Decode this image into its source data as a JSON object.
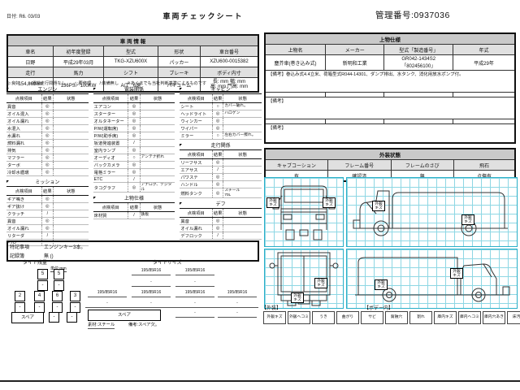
{
  "header": {
    "date": "日付: R6. 03/03",
    "title": "車両チェックシート",
    "control_number": "管理番号:0937036"
  },
  "vehicle_info": {
    "section_title": "車 両 情 報",
    "row1_headers": [
      "車名",
      "初年度登録",
      "型式",
      "形状",
      "車台番号"
    ],
    "row1_values": [
      "日野",
      "平成29年03月",
      "TKG-XZU600X",
      "パッカー",
      "XZU600-0015382"
    ],
    "row2_headers": [
      "走行",
      "馬力",
      "シフト",
      "ブレーキ",
      "ボディ内寸"
    ],
    "row2_values": [
      "154,869km",
      "136PS／100KW",
      "A/T　6速",
      "バキューム"
    ],
    "body_dims_line1": "長:        mm  幅:        mm",
    "body_dims_line2": "高:        mm  門高:      mm"
  },
  "legend": "◎:良好　　○:通常走行問題なし　　△:要修理　　/:装備無し　　※あくまでも当社判断基準によるものです",
  "inspection": {
    "col_headers": {
      "item": "点検項目",
      "result": "結果",
      "state": "状態"
    },
    "engine": {
      "title": "エンジン",
      "rows": [
        {
          "i": "異音",
          "r": "◎",
          "s": ""
        },
        {
          "i": "オイル混入",
          "r": "◎",
          "s": ""
        },
        {
          "i": "オイル漏れ",
          "r": "◎",
          "s": ""
        },
        {
          "i": "水混入",
          "r": "◎",
          "s": ""
        },
        {
          "i": "水漏れ",
          "r": "◎",
          "s": ""
        },
        {
          "i": "燃料漏れ",
          "r": "◎",
          "s": ""
        },
        {
          "i": "排気",
          "r": "◎",
          "s": ""
        },
        {
          "i": "マフラー",
          "r": "◎",
          "s": ""
        },
        {
          "i": "ターボ",
          "r": "◎",
          "s": ""
        },
        {
          "i": "冷却水循環",
          "r": "◎",
          "s": ""
        }
      ]
    },
    "mission": {
      "title": "ミッション",
      "rows": [
        {
          "i": "ギア鳴き",
          "r": "◎",
          "s": ""
        },
        {
          "i": "ギア抜け",
          "r": "◎",
          "s": ""
        },
        {
          "i": "クラッチ",
          "r": "/",
          "s": ""
        },
        {
          "i": "異音",
          "r": "◎",
          "s": ""
        },
        {
          "i": "オイル漏れ",
          "r": "◎",
          "s": ""
        },
        {
          "i": "リターダ",
          "r": "/",
          "s": ""
        },
        {
          "i": "PTO",
          "r": "",
          "s": ""
        }
      ]
    },
    "electrical": {
      "title": "電装関係",
      "rows": [
        {
          "i": "エアコン",
          "r": "◎",
          "s": ""
        },
        {
          "i": "スターター",
          "r": "◎",
          "s": ""
        },
        {
          "i": "オルタネーター",
          "r": "◎",
          "s": ""
        },
        {
          "i": "P/W(運転席)",
          "r": "◎",
          "s": ""
        },
        {
          "i": "P/W(助手席)",
          "r": "◎",
          "s": ""
        },
        {
          "i": "坂道発進装置",
          "r": "/",
          "s": ""
        },
        {
          "i": "室内ランプ",
          "r": "◎",
          "s": ""
        },
        {
          "i": "オーディオ",
          "r": "○",
          "s": "アンテナ折れ"
        },
        {
          "i": "バックカメラ",
          "r": "◎",
          "s": ""
        },
        {
          "i": "電格ミラー",
          "r": "◎",
          "s": ""
        },
        {
          "i": "ETC",
          "r": "/",
          "s": ""
        },
        {
          "i": "タコグラフ",
          "r": "◎",
          "s": "アナログ、デジタル"
        }
      ]
    },
    "joubutsu": {
      "title": "上物仕様",
      "rows": [
        {
          "i": "床材質",
          "r": "/",
          "s": "鉄板"
        }
      ]
    },
    "cabin": {
      "title": "キャビン",
      "rows": [
        {
          "i": "シート",
          "r": "○",
          "s": "カバー破れ。"
        },
        {
          "i": "ヘッドライト",
          "r": "◎",
          "s": "ハロゲン"
        },
        {
          "i": "ウィンカー",
          "r": "◎",
          "s": ""
        },
        {
          "i": "ワイパー",
          "r": "◎",
          "s": ""
        },
        {
          "i": "ミラー",
          "r": "○",
          "s": "左右カバー擦れ。"
        }
      ]
    },
    "running": {
      "title": "走行関係",
      "rows": [
        {
          "i": "リーフサス",
          "r": "◎",
          "s": ""
        },
        {
          "i": "エアサス",
          "r": "/",
          "s": ""
        },
        {
          "i": "パワステ",
          "r": "◎",
          "s": ""
        },
        {
          "i": "ハンドル",
          "r": "◎",
          "s": ""
        },
        {
          "i": "燃料タンク",
          "r": "◎",
          "s": "スチール\n70L"
        }
      ]
    },
    "diff": {
      "title": "デフ",
      "rows": [
        {
          "i": "異音",
          "r": "◎",
          "s": ""
        },
        {
          "i": "オイル漏れ",
          "r": "◎",
          "s": ""
        },
        {
          "i": "デフロック",
          "r": "/",
          "s": ""
        }
      ]
    }
  },
  "notes_box": {
    "label1": "特記事項",
    "value1": "エンジンキー3本。",
    "label2": "記録簿",
    "value2": "無 ()"
  },
  "tire_tread": {
    "title": "タイヤ残量",
    "unit": "単位:mm",
    "front": [
      "5",
      "5"
    ],
    "front2": [
      "-",
      "-"
    ],
    "rear": [
      "2",
      "4",
      "6",
      "3"
    ],
    "rear2": [
      "-",
      "-",
      "-",
      "-"
    ],
    "spare_label": "スペア",
    "spare_values": [
      "-",
      "-"
    ]
  },
  "tire_size": {
    "title": "タイヤサイズ",
    "front": [
      "195/85R16",
      "195/85R16"
    ],
    "front2": [
      "-",
      "-"
    ],
    "rear": [
      "195/85R16",
      "195/85R16",
      "195/85R16",
      "195/85R16"
    ],
    "rear2": [
      "-",
      "-",
      "-",
      "-"
    ],
    "spare_label": "スペア",
    "spare_values": [
      "-",
      "-"
    ],
    "material": "素材:スチール",
    "note": "備考:スペア欠。"
  },
  "superstructure": {
    "section_title": "上物仕様",
    "headers": [
      "上物名",
      "メーカー",
      "型式「製造番号」",
      "年式"
    ],
    "values": [
      "塵芥車(巻き込み式)",
      "新明和工業",
      "GR042-1434S2",
      "平成29年"
    ],
    "serial2": "「802456100」",
    "remarks_label": "【備考】",
    "remarks1": "巻込み式4.4立米、荷箱型式R044-14301、ダンプ排出、水タンク、消化用放水ポンプ付。",
    "remarks2": "",
    "remarks3": ""
  },
  "exterior": {
    "section_title": "外装状態",
    "headers": [
      "キャブコーション",
      "フレーム番号",
      "フレームのさび",
      "飛石"
    ],
    "values": [
      "有",
      "確認済",
      "無",
      "点傷有"
    ]
  },
  "diagram": {
    "damage_label": "外鈑キズ"
  },
  "damage_legend": {
    "exterior_label": "【外装】",
    "body_label": "【ボデー内】",
    "items": [
      "外鈑キズ",
      "外鈑ヘコミ",
      "うき",
      "曲がり",
      "サビ",
      "腐蝕穴",
      "割れ",
      "庫内キズ",
      "庫内ヘコミ",
      "庫内穴あき",
      "床汚れ"
    ]
  }
}
